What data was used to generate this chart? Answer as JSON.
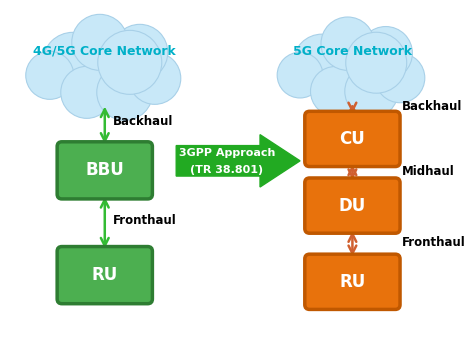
{
  "background_color": "#ffffff",
  "cloud_color": "#c8e8f8",
  "cloud_border": "#a8d0e8",
  "left_box_color": "#4caf50",
  "left_box_border": "#2e7d32",
  "right_box_color": "#e8720c",
  "right_box_border": "#c05800",
  "arrow_color_green": "#33bb33",
  "arrow_color_orange": "#d06030",
  "left_title": "4G/5G Core Network",
  "right_title": "5G Core Network",
  "left_boxes": [
    "BBU",
    "RU"
  ],
  "right_boxes": [
    "CU",
    "DU",
    "RU"
  ],
  "left_labels": [
    "Backhaul",
    "Fronthaul"
  ],
  "right_labels": [
    "Backhaul",
    "Midhaul",
    "Fronthaul"
  ],
  "center_arrow_text1": "3GPP Approach",
  "center_arrow_text2": "(TR 38.801)",
  "title_color": "#00b0c8",
  "label_color": "#000000",
  "center_text_color": "#ffffff",
  "center_arrow_color": "#22aa22"
}
